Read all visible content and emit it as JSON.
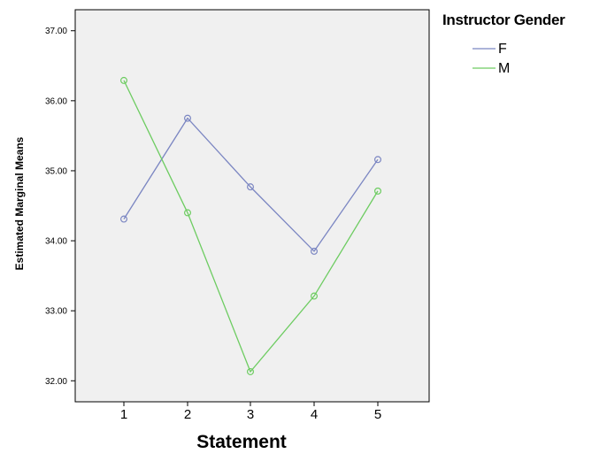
{
  "chart_data": {
    "type": "line",
    "x": [
      1,
      2,
      3,
      4,
      5
    ],
    "x_tick_labels": [
      "1",
      "2",
      "3",
      "4",
      "5"
    ],
    "xlabel": "Statement",
    "ylabel": "Estimated Marginal Means",
    "ylim": [
      31.7,
      37.3
    ],
    "y_ticks": [
      32,
      33,
      34,
      35,
      36,
      37
    ],
    "y_tick_labels": [
      "32.00",
      "33.00",
      "34.00",
      "35.00",
      "36.00",
      "37.00"
    ],
    "grid": false,
    "legend": {
      "title": "Instructor Gender",
      "placement": "outside-right-top"
    },
    "series": [
      {
        "name": "F",
        "color": "#7b86c2",
        "values": [
          34.31,
          35.75,
          34.77,
          33.85,
          35.16
        ]
      },
      {
        "name": "M",
        "color": "#6dcc61",
        "values": [
          36.29,
          34.4,
          32.13,
          33.21,
          34.71
        ]
      }
    ],
    "plot_background": "#f0f0f0"
  }
}
